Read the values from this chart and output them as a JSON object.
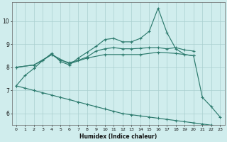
{
  "xlabel": "Humidex (Indice chaleur)",
  "background_color": "#d0eded",
  "grid_color": "#aacfcf",
  "line_color": "#2d7b6e",
  "xlim": [
    -0.5,
    23.5
  ],
  "ylim": [
    5.5,
    10.8
  ],
  "xticks": [
    0,
    1,
    2,
    3,
    4,
    5,
    6,
    7,
    8,
    9,
    10,
    11,
    12,
    13,
    14,
    15,
    16,
    17,
    18,
    19,
    20,
    21,
    22,
    23
  ],
  "yticks": [
    6,
    7,
    8,
    9,
    10
  ],
  "line1_x": [
    0,
    1,
    2,
    3,
    4,
    5,
    6,
    7,
    8,
    9,
    10,
    11,
    12,
    13,
    14,
    15,
    16,
    17,
    18,
    19,
    20,
    21,
    22,
    23
  ],
  "line1_y": [
    7.2,
    7.65,
    7.95,
    8.3,
    8.6,
    8.25,
    8.1,
    8.4,
    8.65,
    8.9,
    9.2,
    9.25,
    9.1,
    9.1,
    9.25,
    9.55,
    10.55,
    9.5,
    8.8,
    8.55,
    8.5,
    6.7,
    6.3,
    5.85
  ],
  "line2_x": [
    0,
    2,
    3,
    4,
    5,
    6,
    7,
    8,
    9,
    10,
    11,
    12,
    13,
    14,
    15,
    16,
    17,
    18,
    19,
    20
  ],
  "line2_y": [
    8.0,
    8.1,
    8.3,
    8.55,
    8.3,
    8.2,
    8.3,
    8.45,
    8.7,
    8.8,
    8.85,
    8.8,
    8.8,
    8.82,
    8.85,
    8.85,
    8.8,
    8.85,
    8.75,
    8.7
  ],
  "line3_x": [
    0,
    2,
    4,
    6,
    8,
    10,
    12,
    14,
    16,
    18,
    20
  ],
  "line3_y": [
    8.0,
    8.1,
    8.55,
    8.15,
    8.4,
    8.55,
    8.55,
    8.55,
    8.65,
    8.6,
    8.5
  ],
  "line4_x": [
    0,
    1,
    2,
    3,
    4,
    5,
    6,
    7,
    8,
    9,
    10,
    11,
    12,
    13,
    14,
    15,
    16,
    17,
    18,
    19,
    20,
    21,
    22,
    23
  ],
  "line4_y": [
    7.2,
    7.1,
    7.0,
    6.9,
    6.8,
    6.7,
    6.6,
    6.5,
    6.4,
    6.3,
    6.2,
    6.1,
    6.0,
    5.95,
    5.9,
    5.85,
    5.8,
    5.75,
    5.7,
    5.65,
    5.6,
    5.55,
    5.5,
    5.45
  ]
}
